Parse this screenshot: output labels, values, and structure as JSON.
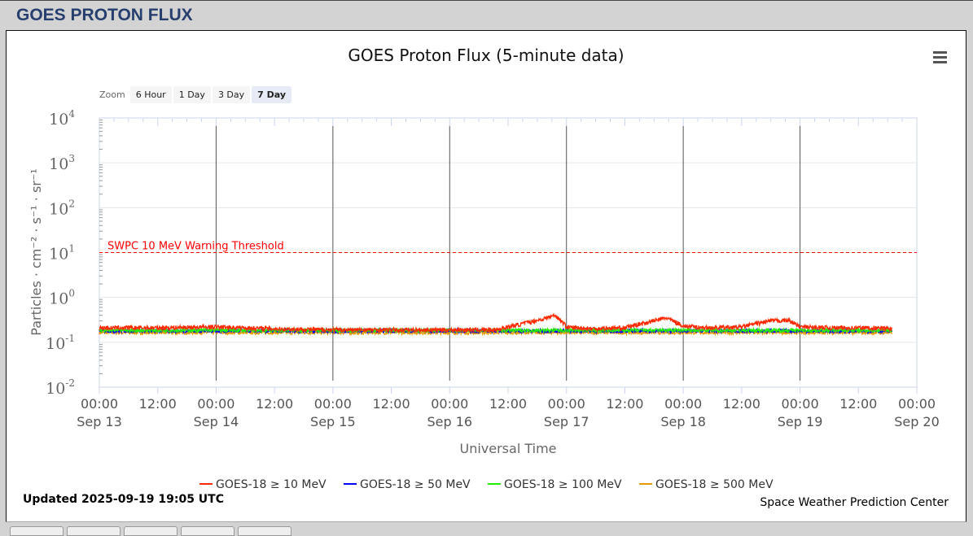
{
  "page": {
    "header": "GOES PROTON FLUX",
    "updated": "Updated 2025-09-19 19:05 UTC",
    "credit": "Space Weather Prediction Center"
  },
  "zoom": {
    "label": "Zoom",
    "buttons": [
      "6 Hour",
      "1 Day",
      "3 Day",
      "7 Day"
    ],
    "active": "7 Day"
  },
  "chart_data": {
    "type": "line",
    "title": "GOES Proton Flux (5-minute data)",
    "xlabel": "Universal Time",
    "ylabel": "Particles · cm⁻² · s⁻¹ · sr⁻¹",
    "yscale": "log",
    "ylim": [
      0.01,
      10000
    ],
    "yticks": [
      "10-2",
      "10-1",
      "100",
      "101",
      "102",
      "103",
      "104"
    ],
    "xlim_days": [
      0,
      7
    ],
    "xticks": [
      [
        "00:00",
        "Sep 13"
      ],
      [
        "12:00",
        ""
      ],
      [
        "00:00",
        "Sep 14"
      ],
      [
        "12:00",
        ""
      ],
      [
        "00:00",
        "Sep 15"
      ],
      [
        "12:00",
        ""
      ],
      [
        "00:00",
        "Sep 16"
      ],
      [
        "12:00",
        ""
      ],
      [
        "00:00",
        "Sep 17"
      ],
      [
        "12:00",
        ""
      ],
      [
        "00:00",
        "Sep 18"
      ],
      [
        "12:00",
        ""
      ],
      [
        "00:00",
        "Sep 19"
      ],
      [
        "12:00",
        ""
      ],
      [
        "00:00",
        "Sep 20"
      ]
    ],
    "threshold": {
      "value": 10,
      "label": "SWPC 10 MeV Warning Threshold",
      "color": "#ff0000"
    },
    "legend_position": "bottom",
    "data_end_day": 6.79,
    "series": [
      {
        "name": "GOES-18 ≥ 10 MeV",
        "color": "#ff2a00",
        "t_days": [
          0,
          0.5,
          1,
          1.5,
          2,
          2.5,
          3,
          3.4,
          3.6,
          3.8,
          3.9,
          4,
          4.2,
          4.5,
          4.7,
          4.85,
          5,
          5.2,
          5.5,
          5.75,
          5.9,
          6,
          6.3,
          6.6,
          6.79
        ],
        "values": [
          0.21,
          0.21,
          0.22,
          0.2,
          0.19,
          0.19,
          0.19,
          0.19,
          0.25,
          0.33,
          0.4,
          0.22,
          0.2,
          0.21,
          0.28,
          0.35,
          0.23,
          0.21,
          0.22,
          0.3,
          0.31,
          0.22,
          0.21,
          0.21,
          0.2
        ]
      },
      {
        "name": "GOES-18 ≥ 50 MeV",
        "color": "#0000ff",
        "t_days": [
          0,
          6.79
        ],
        "values": [
          0.18,
          0.18
        ]
      },
      {
        "name": "GOES-18 ≥ 100 MeV",
        "color": "#22ee00",
        "t_days": [
          0,
          6.79
        ],
        "values": [
          0.185,
          0.185
        ]
      },
      {
        "name": "GOES-18 ≥ 500 MeV",
        "color": "#e69900",
        "t_days": [
          0,
          6.79
        ],
        "values": [
          0.165,
          0.165
        ]
      }
    ]
  }
}
